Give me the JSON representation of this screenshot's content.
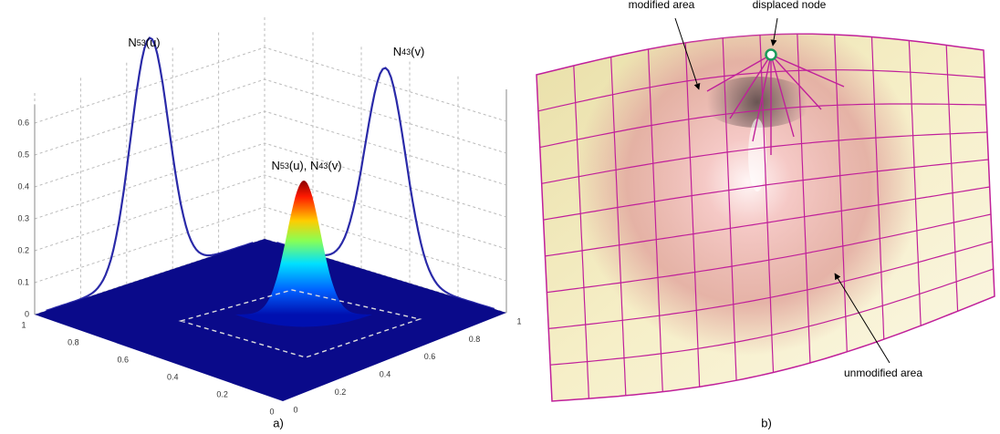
{
  "panel_a": {
    "caption": "a)",
    "curve_labels": [
      {
        "parts": [
          "N",
          "53",
          "(u)"
        ]
      },
      {
        "parts": [
          "N",
          "43",
          "(v)"
        ]
      },
      {
        "parts": [
          "N",
          "53",
          "(u), N",
          "43",
          "(v)"
        ]
      }
    ],
    "z_ticks": [
      0,
      0.1,
      0.2,
      0.3,
      0.4,
      0.5,
      0.6
    ],
    "u_ticks": [
      1,
      0.8,
      0.6,
      0.4,
      0.2,
      0
    ],
    "v_ticks": [
      0,
      0.2,
      0.4,
      0.6,
      0.8,
      1
    ]
  },
  "panel_b": {
    "caption": "b)",
    "annotations": [
      "modified area",
      "displaced node",
      "unmodified area"
    ]
  }
}
